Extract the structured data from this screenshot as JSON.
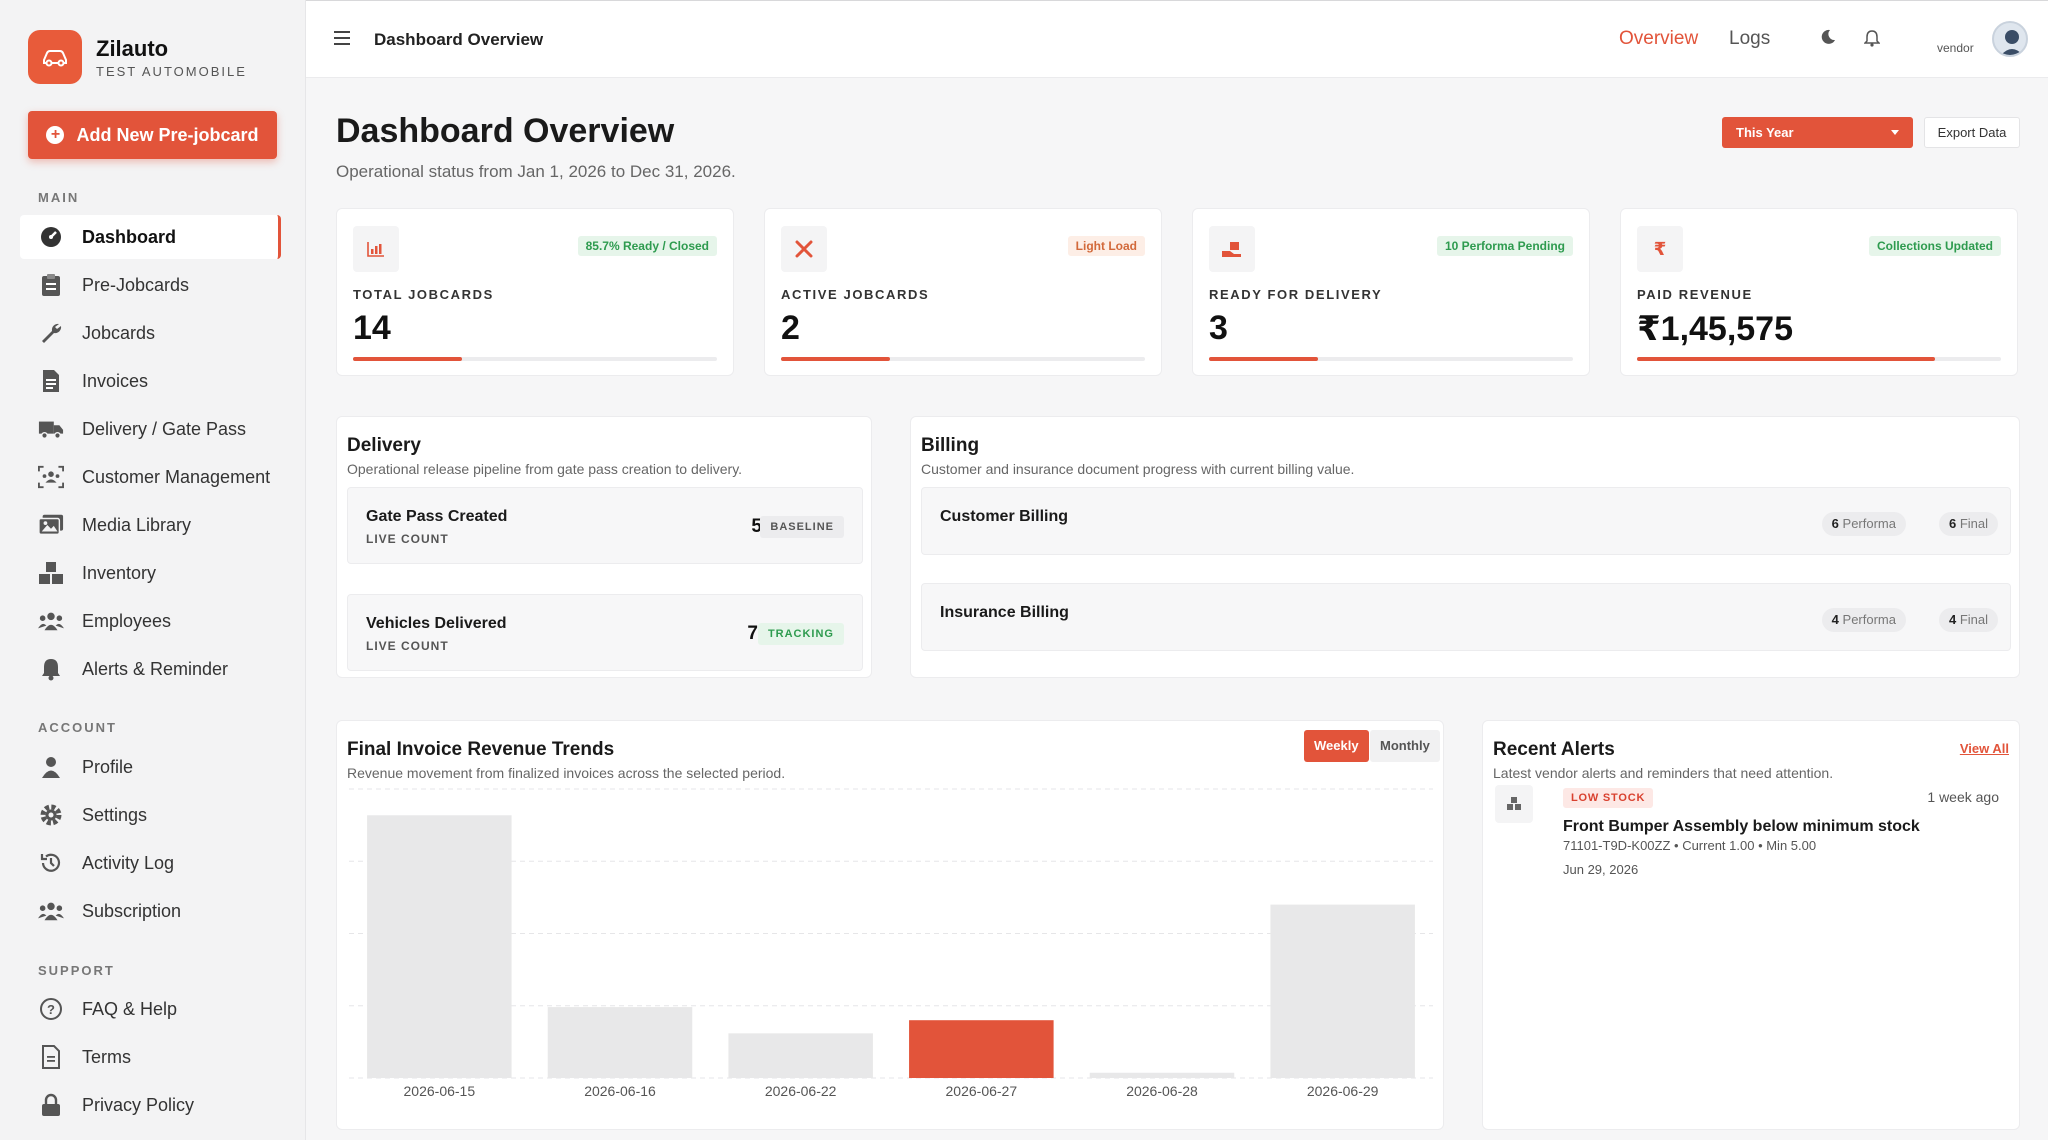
{
  "brand": {
    "name": "Zilauto",
    "subtitle": "TEST AUTOMOBILE",
    "accent": "#e2543a"
  },
  "sidebar": {
    "add_button": "Add New Pre-jobcard",
    "sections": {
      "main": "MAIN",
      "account": "ACCOUNT",
      "support": "SUPPORT"
    },
    "main_items": [
      {
        "label": "Dashboard",
        "icon": "dashboard-icon",
        "active": true
      },
      {
        "label": "Pre-Jobcards",
        "icon": "clipboard-icon"
      },
      {
        "label": "Jobcards",
        "icon": "wrench-icon"
      },
      {
        "label": "Invoices",
        "icon": "invoice-icon"
      },
      {
        "label": "Delivery / Gate Pass",
        "icon": "truck-icon"
      },
      {
        "label": "Customer Management",
        "icon": "customers-icon"
      },
      {
        "label": "Media Library",
        "icon": "images-icon"
      },
      {
        "label": "Inventory",
        "icon": "boxes-icon"
      },
      {
        "label": "Employees",
        "icon": "users-icon"
      },
      {
        "label": "Alerts & Reminder",
        "icon": "bell-icon"
      }
    ],
    "account_items": [
      {
        "label": "Profile",
        "icon": "user-icon"
      },
      {
        "label": "Settings",
        "icon": "gear-icon"
      },
      {
        "label": "Activity Log",
        "icon": "history-icon"
      },
      {
        "label": "Subscription",
        "icon": "users-group-icon"
      }
    ],
    "support_items": [
      {
        "label": "FAQ & Help",
        "icon": "question-icon"
      },
      {
        "label": "Terms",
        "icon": "document-icon"
      },
      {
        "label": "Privacy Policy",
        "icon": "lock-icon"
      }
    ]
  },
  "topbar": {
    "title": "Dashboard Overview",
    "overview": "Overview",
    "logs": "Logs",
    "user": "vendor"
  },
  "header": {
    "title": "Dashboard Overview",
    "subtitle": "Operational status from Jan 1, 2026 to Dec 31, 2026.",
    "period": "This Year",
    "export": "Export Data"
  },
  "stats": [
    {
      "label": "TOTAL JOBCARDS",
      "value": "14",
      "badge": "85.7% Ready / Closed",
      "badge_style": "green",
      "progress": 0.3,
      "icon": "chart-icon"
    },
    {
      "label": "ACTIVE JOBCARDS",
      "value": "2",
      "badge": "Light Load",
      "badge_style": "orange",
      "progress": 0.3,
      "icon": "tools-icon"
    },
    {
      "label": "READY FOR DELIVERY",
      "value": "3",
      "badge": "10 Performa Pending",
      "badge_style": "green",
      "progress": 0.3,
      "icon": "delivery-icon"
    },
    {
      "label": "PAID REVENUE",
      "value": "₹1,45,575",
      "badge": "Collections Updated",
      "badge_style": "green",
      "progress": 0.82,
      "icon": "rupee-icon"
    }
  ],
  "delivery": {
    "title": "Delivery",
    "subtitle": "Operational release pipeline from gate pass creation to delivery.",
    "rows": [
      {
        "title": "Gate Pass Created",
        "sub": "LIVE COUNT",
        "count": "5",
        "tag": "BASELINE"
      },
      {
        "title": "Vehicles Delivered",
        "sub": "LIVE COUNT",
        "count": "7",
        "tag": "TRACKING"
      }
    ]
  },
  "billing": {
    "title": "Billing",
    "subtitle": "Customer and insurance document progress with current billing value.",
    "rows": [
      {
        "title": "Customer Billing",
        "performa_count": "6",
        "performa_label": "Performa",
        "final_count": "6",
        "final_label": "Final"
      },
      {
        "title": "Insurance Billing",
        "performa_count": "4",
        "performa_label": "Performa",
        "final_count": "4",
        "final_label": "Final"
      }
    ]
  },
  "revenue": {
    "title": "Final Invoice Revenue Trends",
    "subtitle": "Revenue movement from finalized invoices across the selected period.",
    "weekly": "Weekly",
    "monthly": "Monthly"
  },
  "chart_data": {
    "type": "bar",
    "categories": [
      "2026-06-15",
      "2026-06-16",
      "2026-06-22",
      "2026-06-27",
      "2026-06-28",
      "2026-06-29"
    ],
    "values": [
      100,
      27,
      17,
      22,
      2,
      66
    ],
    "highlight_index": 3,
    "ylim": [
      0,
      110
    ],
    "grid": true,
    "bar_color": "#e8e8e9",
    "highlight_color": "#e2543a"
  },
  "alerts": {
    "title": "Recent Alerts",
    "subtitle": "Latest vendor alerts and reminders that need attention.",
    "view_all": "View All",
    "items": [
      {
        "tag": "LOW STOCK",
        "time": "1 week ago",
        "title": "Front Bumper Assembly below minimum stock",
        "meta": "71101-T9D-K00ZZ • Current 1.00 • Min 5.00",
        "date": "Jun 29, 2026"
      }
    ]
  }
}
